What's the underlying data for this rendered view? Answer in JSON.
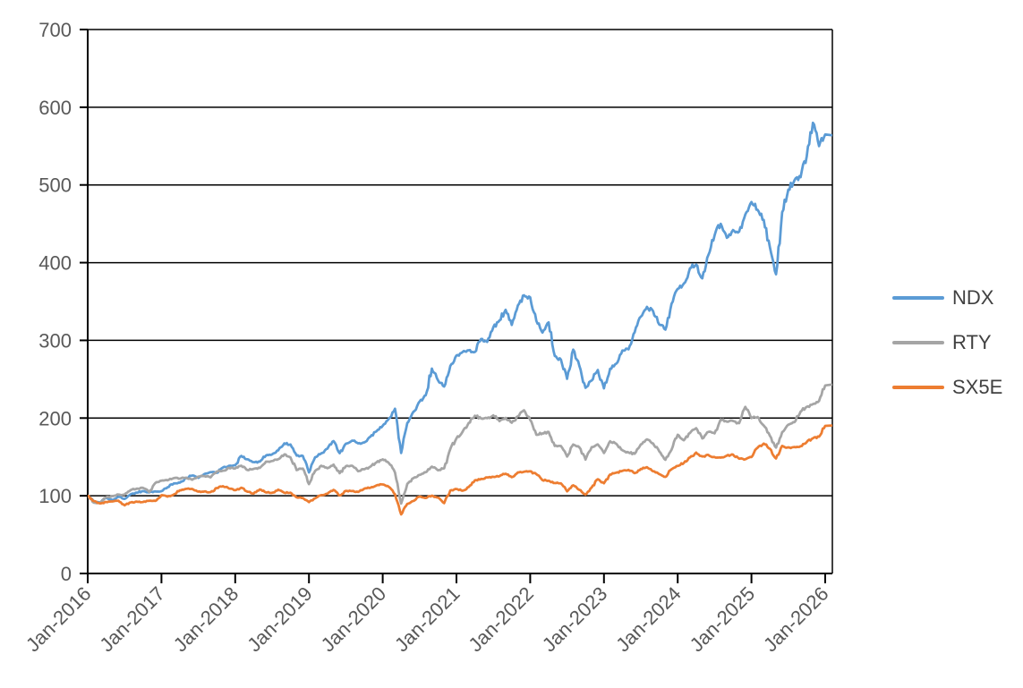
{
  "chart_data": {
    "type": "line",
    "title": "",
    "xlabel": "",
    "ylabel": "",
    "x_axis": {
      "tick_labels": [
        "Jan-2016",
        "Jan-2017",
        "Jan-2018",
        "Jan-2019",
        "Jan-2020",
        "Jan-2021",
        "Jan-2022",
        "Jan-2023",
        "Jan-2024",
        "Jan-2025",
        "Jan-2026"
      ],
      "points_per_year": 12,
      "label_rotation_deg": -45
    },
    "y_axis": {
      "min": 0,
      "max": 700,
      "tick_interval": 100,
      "tick_labels": [
        "0",
        "100",
        "200",
        "300",
        "400",
        "500",
        "600",
        "700"
      ]
    },
    "grid": {
      "horizontal": true,
      "vertical": false
    },
    "legend": {
      "position": "right",
      "entries": [
        "NDX",
        "RTY",
        "SX5E"
      ]
    },
    "base_value": 100,
    "series": [
      {
        "name": "NDX",
        "color": "#5B9BD5",
        "values": [
          100,
          93.0,
          91.5,
          97.4,
          94.5,
          98.6,
          96.0,
          101.9,
          104.1,
          106.0,
          104.3,
          105.6,
          105.9,
          111.0,
          115.8,
          116.9,
          123.0,
          126.0,
          123.0,
          128.0,
          130.4,
          129.5,
          136.3,
          138.6,
          139.3,
          151.3,
          147.0,
          143.3,
          143.9,
          151.7,
          153.3,
          158.4,
          167.4,
          166.0,
          151.7,
          151.3,
          130.0,
          149.6,
          154.6,
          160.6,
          170.4,
          154.8,
          167.0,
          170.9,
          167.4,
          168.7,
          176.0,
          183.0,
          190.1,
          199.2,
          212.0,
          155.0,
          193.6,
          208.1,
          221.2,
          229.4,
          263.7,
          248.6,
          240.6,
          267.1,
          280.6,
          285.0,
          287.2,
          285.0,
          301.8,
          298.0,
          316.9,
          325.7,
          339.3,
          319.8,
          345.1,
          358.0,
          355.3,
          325.1,
          310.0,
          323.1,
          279.9,
          275.3,
          250.5,
          288.0,
          267.2,
          238.9,
          248.3,
          261.9,
          238.2,
          263.5,
          270.0,
          287.0,
          288.4,
          310.4,
          330.5,
          343.1,
          337.5,
          320.4,
          313.8,
          347.2,
          366.3,
          373.1,
          392.9,
          397.5,
          379.8,
          410.0,
          435.0,
          450.0,
          432.0,
          442.0,
          440.0,
          462.0,
          478.0,
          468.0,
          455.0,
          420.0,
          385.0,
          465.0,
          494.0,
          506.0,
          510.0,
          537.0,
          580.0,
          550.0,
          565.0
        ]
      },
      {
        "name": "RTY",
        "color": "#A5A5A5",
        "values": [
          100,
          91.1,
          91.0,
          98.1,
          99.6,
          101.6,
          101.4,
          107.4,
          109.2,
          110.2,
          104.9,
          116.4,
          119.5,
          119.9,
          122.7,
          122.0,
          123.3,
          120.6,
          124.6,
          125.4,
          123.7,
          131.2,
          132.3,
          135.9,
          135.2,
          138.7,
          133.1,
          134.6,
          135.8,
          143.9,
          144.7,
          147.1,
          153.2,
          149.3,
          133.0,
          135.0,
          115.0,
          132.0,
          138.7,
          135.5,
          140.1,
          129.0,
          138.0,
          138.8,
          131.6,
          134.1,
          137.5,
          143.1,
          146.9,
          142.1,
          129.9,
          90.0,
          115.3,
          122.7,
          126.9,
          130.3,
          137.5,
          132.8,
          135.4,
          160.2,
          173.9,
          182.5,
          193.8,
          203.0,
          199.5,
          199.8,
          203.5,
          196.0,
          200.2,
          194.0,
          202.2,
          210.0,
          197.6,
          178.5,
          180.3,
          182.2,
          164.1,
          164.1,
          150.4,
          166.0,
          162.3,
          146.6,
          162.6,
          166.1,
          155.0,
          170.1,
          167.0,
          158.6,
          155.7,
          154.1,
          166.2,
          172.6,
          167.3,
          157.1,
          146.3,
          159.3,
          178.5,
          171.4,
          180.8,
          187.0,
          173.8,
          182.2,
          180.3,
          198.4,
          195.3,
          196.3,
          193.4,
          214.4,
          200.0,
          201.4,
          190.4,
          177.1,
          162.0,
          181.9,
          191.5,
          194.7,
          208.3,
          214.5,
          218.0,
          222.0,
          242.0
        ]
      },
      {
        "name": "SX5E",
        "color": "#ED7D31",
        "values": [
          100,
          93.2,
          90.1,
          92.0,
          92.7,
          93.7,
          87.7,
          91.5,
          92.5,
          91.9,
          93.5,
          93.4,
          100.7,
          98.9,
          101.6,
          107.1,
          108.9,
          108.8,
          105.3,
          105.6,
          104.7,
          110.0,
          112.4,
          109.3,
          107.2,
          110.4,
          105.2,
          102.9,
          108.2,
          104.3,
          103.9,
          107.9,
          103.8,
          104.0,
          97.9,
          97.1,
          91.8,
          96.7,
          100.9,
          102.6,
          107.6,
          100.4,
          106.3,
          106.1,
          104.9,
          109.2,
          110.3,
          113.4,
          114.6,
          111.4,
          101.9,
          76.0,
          89.6,
          93.3,
          99.0,
          97.1,
          100.2,
          97.8,
          90.5,
          106.9,
          108.7,
          106.5,
          111.3,
          119.9,
          121.7,
          123.6,
          124.4,
          125.1,
          128.4,
          123.9,
          130.1,
          131.0,
          131.5,
          127.8,
          120.1,
          119.4,
          116.4,
          116.0,
          105.7,
          113.5,
          107.6,
          101.5,
          110.7,
          121.3,
          116.1,
          127.4,
          129.7,
          132.1,
          133.4,
          129.1,
          134.6,
          136.8,
          131.5,
          127.8,
          124.3,
          134.1,
          138.4,
          142.2,
          149.3,
          155.6,
          150.6,
          152.5,
          149.8,
          149.1,
          151.7,
          153.0,
          147.7,
          147.0,
          149.8,
          161.8,
          167.2,
          160.6,
          148.0,
          164.2,
          162.3,
          162.8,
          163.8,
          169.2,
          174.0,
          176.0,
          190.0
        ]
      }
    ]
  },
  "colors": {
    "background": "#FFFFFF",
    "gridline": "#000000",
    "axis_line": "#000000",
    "axis_text": "#595959",
    "legend_text": "#404040",
    "ndx": "#5B9BD5",
    "rty": "#A5A5A5",
    "sx5e": "#ED7D31"
  }
}
